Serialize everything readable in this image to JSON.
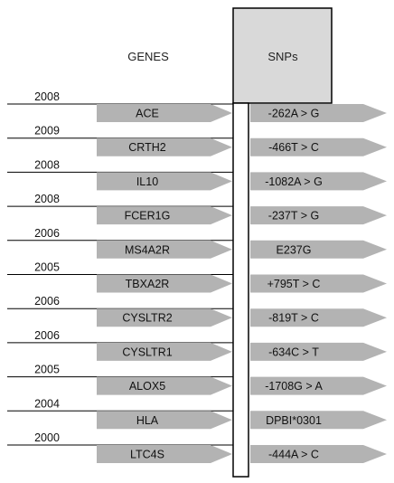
{
  "headers": {
    "genes": "GENES",
    "snps": "SNPs"
  },
  "rows": [
    {
      "year": "2008",
      "gene": "ACE",
      "snp": "-262A > G"
    },
    {
      "year": "2009",
      "gene": "CRTH2",
      "snp": "-466T > C"
    },
    {
      "year": "2008",
      "gene": "IL10",
      "snp": "-1082A > G"
    },
    {
      "year": "2008",
      "gene": "FCER1G",
      "snp": "-237T > G"
    },
    {
      "year": "2006",
      "gene": "MS4A2R",
      "snp": "E237G"
    },
    {
      "year": "2005",
      "gene": "TBXA2R",
      "snp": "+795T > C"
    },
    {
      "year": "2006",
      "gene": "CYSLTR2",
      "snp": "-819T > C"
    },
    {
      "year": "2006",
      "gene": "CYSLTR1",
      "snp": "-634C > T"
    },
    {
      "year": "2005",
      "gene": "ALOX5",
      "snp": "-1708G > A"
    },
    {
      "year": "2004",
      "gene": "HLA",
      "snp": "DPBI*0301"
    },
    {
      "year": "2000",
      "gene": "LTC4S",
      "snp": "-444A > C"
    }
  ],
  "colors": {
    "arrow_fill": "#b3b3b3",
    "header_box_fill": "#d9d9d9",
    "line": "#000000"
  }
}
